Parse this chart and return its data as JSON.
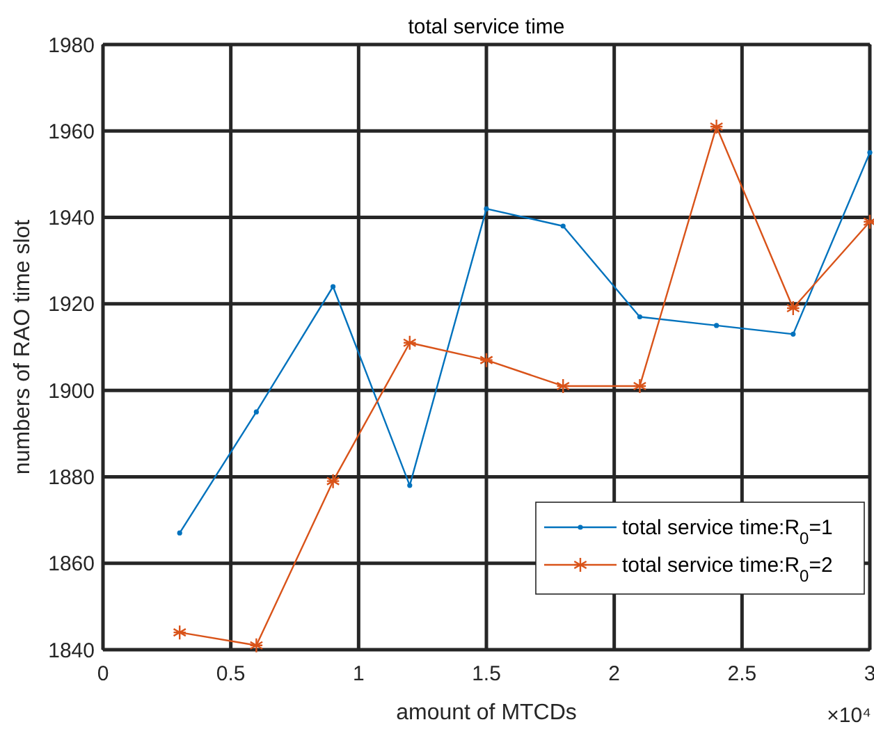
{
  "chart_data": {
    "type": "line",
    "title": "total service time",
    "xlabel": "amount of MTCDs",
    "ylabel": "numbers of RAO time slot",
    "x": [
      0.3,
      0.6,
      0.9,
      1.2,
      1.5,
      1.8,
      2.1,
      2.4,
      2.7,
      3
    ],
    "series": [
      {
        "name": "total service time:R$_{0}$=1",
        "color": "#0072bd",
        "marker": "circle",
        "values": [
          1867,
          1895,
          1924,
          1878,
          1942,
          1938,
          1917,
          1915,
          1913,
          1955
        ]
      },
      {
        "name": "total service time:R$_{0}$=2",
        "color": "#d95319",
        "marker": "cross",
        "values": [
          1844,
          1841,
          1879,
          1911,
          1907,
          1901,
          1901,
          1961,
          1919,
          1939
        ]
      }
    ],
    "xlim": [
      0,
      3
    ],
    "xticks": [
      0,
      0.5,
      1,
      1.5,
      2,
      2.5,
      3
    ],
    "ylim": [
      1840,
      1980
    ],
    "yticks": [
      1840,
      1860,
      1880,
      1900,
      1920,
      1940,
      1960,
      1980
    ],
    "grid": true,
    "legend": "bottom right",
    "line_style": "solid",
    "annotations": [
      "×10⁴"
    ]
  }
}
